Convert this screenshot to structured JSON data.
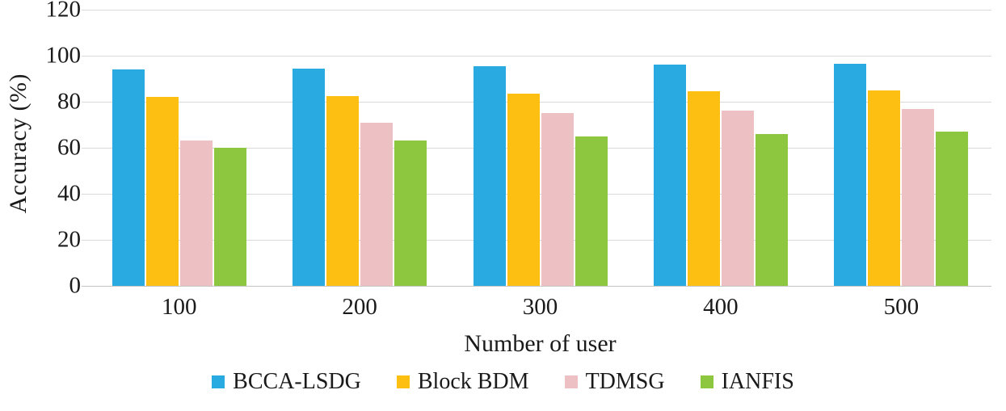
{
  "chart_data": {
    "type": "bar",
    "title": "",
    "xlabel": "Number of user",
    "ylabel": "Accuracy (%)",
    "ylim": [
      0,
      120
    ],
    "ytick_step": 20,
    "grid": true,
    "legend_position": "bottom",
    "gridline_color": "#d9d9d9",
    "axis_line_color": "#c4c4c4",
    "categories": [
      "100",
      "200",
      "300",
      "400",
      "500"
    ],
    "series": [
      {
        "name": "BCCA-LSDG",
        "color": "#29abe2",
        "values": [
          94,
          94.5,
          95.5,
          96,
          96.5
        ]
      },
      {
        "name": "Block BDM",
        "color": "#fcbf12",
        "values": [
          82,
          82.5,
          83.5,
          84.5,
          85
        ]
      },
      {
        "name": "TDMSG",
        "color": "#edc1c3",
        "values": [
          63,
          71,
          75,
          76,
          77
        ]
      },
      {
        "name": "IANFIS",
        "color": "#8dc63f",
        "values": [
          60,
          63,
          65,
          66,
          67
        ]
      }
    ]
  }
}
